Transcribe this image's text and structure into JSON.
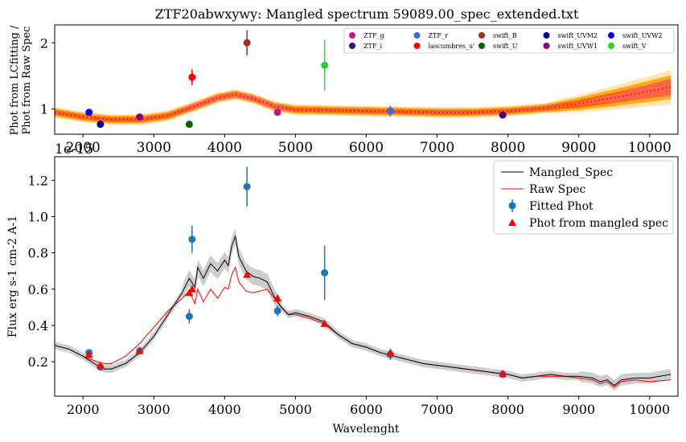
{
  "chart_data": [
    {
      "type": "scatter",
      "title": "ZTF20abwxywy: Mangled spectrum 59089.00_spec_extended.txt",
      "xlabel": "",
      "ylabel_line1": "Phot from LCfitting /",
      "ylabel_line2": "Phot from Raw Spec",
      "xlim": [
        1600,
        10400
      ],
      "ylim": [
        0.62,
        2.27
      ],
      "yticks": [
        1,
        2
      ],
      "xticks": [
        2000,
        3000,
        4000,
        5000,
        6000,
        7000,
        8000,
        9000,
        10000
      ],
      "overlap_label": "1e-15",
      "legend_position": "upper-right",
      "ratio_curve": {
        "x": [
          1600,
          2000,
          2400,
          2800,
          3200,
          3600,
          3900,
          4150,
          4400,
          4700,
          5000,
          5500,
          6000,
          6500,
          7000,
          7500,
          8000,
          8500,
          9000,
          9500,
          10000,
          10300
        ],
        "y": [
          0.95,
          0.88,
          0.84,
          0.84,
          0.9,
          1.05,
          1.17,
          1.22,
          1.16,
          1.04,
          0.99,
          0.98,
          0.97,
          0.96,
          0.95,
          0.95,
          0.97,
          1.01,
          1.08,
          1.17,
          1.27,
          1.33
        ]
      },
      "points": [
        {
          "name": "ZTF_g",
          "color": "#c71585",
          "x": 4746,
          "y": 0.95,
          "err": 0.0
        },
        {
          "name": "ZTF_i",
          "color": "#4b0082",
          "x": 7926,
          "y": 0.91,
          "err": 0.0
        },
        {
          "name": "ZTF_r",
          "color": "#4169e1",
          "x": 6339,
          "y": 0.97,
          "err": 0.08
        },
        {
          "name": "lascumbres_u'",
          "color": "#ff0000",
          "x": 3540,
          "y": 1.48,
          "err": 0.12
        },
        {
          "name": "swift_B",
          "color": "#a52a2a",
          "x": 4315,
          "y": 2.0,
          "err": 0.19
        },
        {
          "name": "swift_U",
          "color": "#006400",
          "x": 3500,
          "y": 0.77,
          "err": 0.0
        },
        {
          "name": "swift_UVM2",
          "color": "#000080",
          "x": 2246,
          "y": 0.77,
          "err": 0.0
        },
        {
          "name": "swift_UVW1",
          "color": "#8b008b",
          "x": 2800,
          "y": 0.88,
          "err": 0.05
        },
        {
          "name": "swift_UVW2",
          "color": "#0000ff",
          "x": 2085,
          "y": 0.95,
          "err": 0.04
        },
        {
          "name": "swift_V",
          "color": "#32cd32",
          "x": 5411,
          "y": 1.66,
          "err": 0.38
        }
      ]
    },
    {
      "type": "line",
      "title": "",
      "xlabel": "Wavelenght",
      "ylabel": "Flux erg s-1 cm-2 A-1",
      "xlim": [
        1600,
        10400
      ],
      "ylim": [
        0.01,
        1.33
      ],
      "yticks": [
        0.2,
        0.4,
        0.6,
        0.8,
        1.0,
        1.2
      ],
      "ytick_labels": [
        "0.2",
        "0.4",
        "0.6",
        "0.8",
        "1.0",
        "1.2"
      ],
      "xticks": [
        2000,
        3000,
        4000,
        5000,
        6000,
        7000,
        8000,
        9000,
        10000
      ],
      "legend_position": "upper-right",
      "legend": [
        "Mangled_Spec",
        "Raw Spec",
        "Fitted Phot",
        "Phot from mangled spec"
      ],
      "series": [
        {
          "name": "Mangled_Spec",
          "color": "#000000",
          "x": [
            1600,
            1800,
            2000,
            2200,
            2300,
            2400,
            2600,
            2800,
            3000,
            3200,
            3400,
            3500,
            3580,
            3620,
            3700,
            3800,
            3900,
            4000,
            4050,
            4100,
            4150,
            4200,
            4300,
            4400,
            4500,
            4600,
            4700,
            4800,
            4900,
            5000,
            5200,
            5400,
            5600,
            5800,
            6000,
            6200,
            6400,
            6600,
            6800,
            7000,
            7200,
            7400,
            7600,
            7800,
            8000,
            8200,
            8400,
            8600,
            8800,
            9000,
            9200,
            9300,
            9400,
            9500,
            9600,
            9800,
            10000,
            10300
          ],
          "y": [
            0.29,
            0.27,
            0.23,
            0.18,
            0.16,
            0.16,
            0.19,
            0.25,
            0.34,
            0.46,
            0.58,
            0.66,
            0.61,
            0.72,
            0.66,
            0.74,
            0.7,
            0.76,
            0.73,
            0.84,
            0.89,
            0.78,
            0.7,
            0.67,
            0.66,
            0.64,
            0.56,
            0.5,
            0.46,
            0.47,
            0.45,
            0.42,
            0.35,
            0.3,
            0.28,
            0.25,
            0.23,
            0.21,
            0.19,
            0.18,
            0.17,
            0.16,
            0.15,
            0.14,
            0.13,
            0.11,
            0.12,
            0.13,
            0.12,
            0.12,
            0.11,
            0.09,
            0.1,
            0.07,
            0.1,
            0.11,
            0.11,
            0.13
          ]
        },
        {
          "name": "Raw Spec",
          "color": "#ff0000",
          "x": [
            1600,
            1800,
            2000,
            2200,
            2300,
            2400,
            2600,
            2800,
            3000,
            3200,
            3400,
            3500,
            3580,
            3620,
            3700,
            3800,
            3900,
            4000,
            4050,
            4100,
            4150,
            4200,
            4300,
            4400,
            4500,
            4600,
            4700,
            4800,
            4900,
            5000,
            5200,
            5400,
            5600,
            5800,
            6000,
            6200,
            6400,
            6600,
            6800,
            7000,
            7200,
            7400,
            7600,
            7800,
            8000,
            8200,
            8400,
            8600,
            8800,
            9000,
            9200,
            9300,
            9400,
            9500,
            9600,
            9800,
            10000,
            10300
          ],
          "y": [
            0.29,
            0.27,
            0.23,
            0.2,
            0.19,
            0.19,
            0.23,
            0.3,
            0.39,
            0.48,
            0.55,
            0.59,
            0.52,
            0.6,
            0.53,
            0.6,
            0.55,
            0.61,
            0.6,
            0.68,
            0.72,
            0.64,
            0.59,
            0.58,
            0.59,
            0.6,
            0.55,
            0.5,
            0.46,
            0.46,
            0.44,
            0.41,
            0.35,
            0.3,
            0.28,
            0.25,
            0.23,
            0.21,
            0.19,
            0.18,
            0.17,
            0.16,
            0.15,
            0.14,
            0.13,
            0.11,
            0.12,
            0.12,
            0.12,
            0.11,
            0.1,
            0.08,
            0.09,
            0.06,
            0.09,
            0.1,
            0.09,
            0.1
          ]
        }
      ],
      "fitted_phot": {
        "name": "Fitted Phot",
        "color": "#1f77b4",
        "x": [
          2085,
          2246,
          2800,
          3500,
          3540,
          4315,
          4746,
          5411,
          6339,
          7926
        ],
        "y": [
          0.25,
          0.17,
          0.26,
          0.45,
          0.875,
          1.165,
          0.48,
          0.69,
          0.24,
          0.13
        ],
        "err": [
          0.01,
          0.01,
          0.01,
          0.04,
          0.075,
          0.11,
          0.03,
          0.15,
          0.03,
          0.01
        ]
      },
      "mangled_phot": {
        "name": "Phot from mangled spec",
        "color": "#ff0000",
        "x": [
          2085,
          2246,
          2800,
          3500,
          3540,
          4315,
          4746,
          5411,
          6339,
          7926
        ],
        "y": [
          0.24,
          0.18,
          0.26,
          0.58,
          0.6,
          0.68,
          0.55,
          0.41,
          0.25,
          0.135
        ]
      }
    }
  ]
}
